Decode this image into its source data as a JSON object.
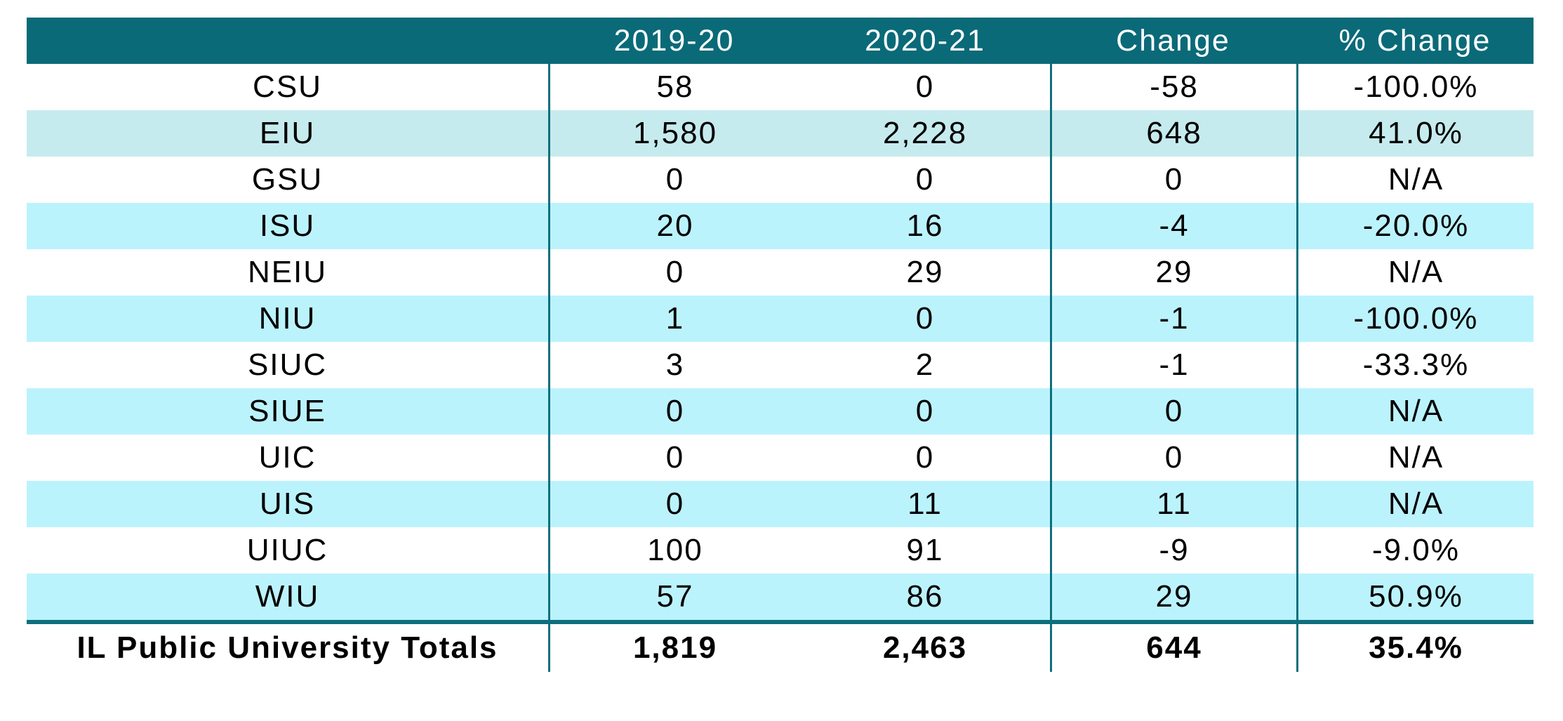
{
  "chart_data": {
    "type": "table",
    "columns": [
      "",
      "2019-20",
      "2020-21",
      "Change",
      "% Change"
    ],
    "rows": [
      [
        "CSU",
        "58",
        "0",
        "-58",
        "-100.0%"
      ],
      [
        "EIU",
        "1,580",
        "2,228",
        "648",
        "41.0%"
      ],
      [
        "GSU",
        "0",
        "0",
        "0",
        "N/A"
      ],
      [
        "ISU",
        "20",
        "16",
        "-4",
        "-20.0%"
      ],
      [
        "NEIU",
        "0",
        "29",
        "29",
        "N/A"
      ],
      [
        "NIU",
        "1",
        "0",
        "-1",
        "-100.0%"
      ],
      [
        "SIUC",
        "3",
        "2",
        "-1",
        "-33.3%"
      ],
      [
        "SIUE",
        "0",
        "0",
        "0",
        "N/A"
      ],
      [
        "UIC",
        "0",
        "0",
        "0",
        "N/A"
      ],
      [
        "UIS",
        "0",
        "11",
        "11",
        "N/A"
      ],
      [
        "UIUC",
        "100",
        "91",
        "-9",
        "-9.0%"
      ],
      [
        "WIU",
        "57",
        "86",
        "29",
        "50.9%"
      ],
      [
        "IL Public University Totals",
        "1,819",
        "2,463",
        "644",
        "35.4%"
      ]
    ]
  },
  "colors": {
    "header_bg": "#0B6A78",
    "header_text": "#FFFFFF",
    "row_stripe_cyan": "#BBF3FD",
    "row_stripe_eiu_teal": "#C6EBEE",
    "divider_teal": "#0E6F7D",
    "body_text": "#000000",
    "background": "#FFFFFF"
  }
}
